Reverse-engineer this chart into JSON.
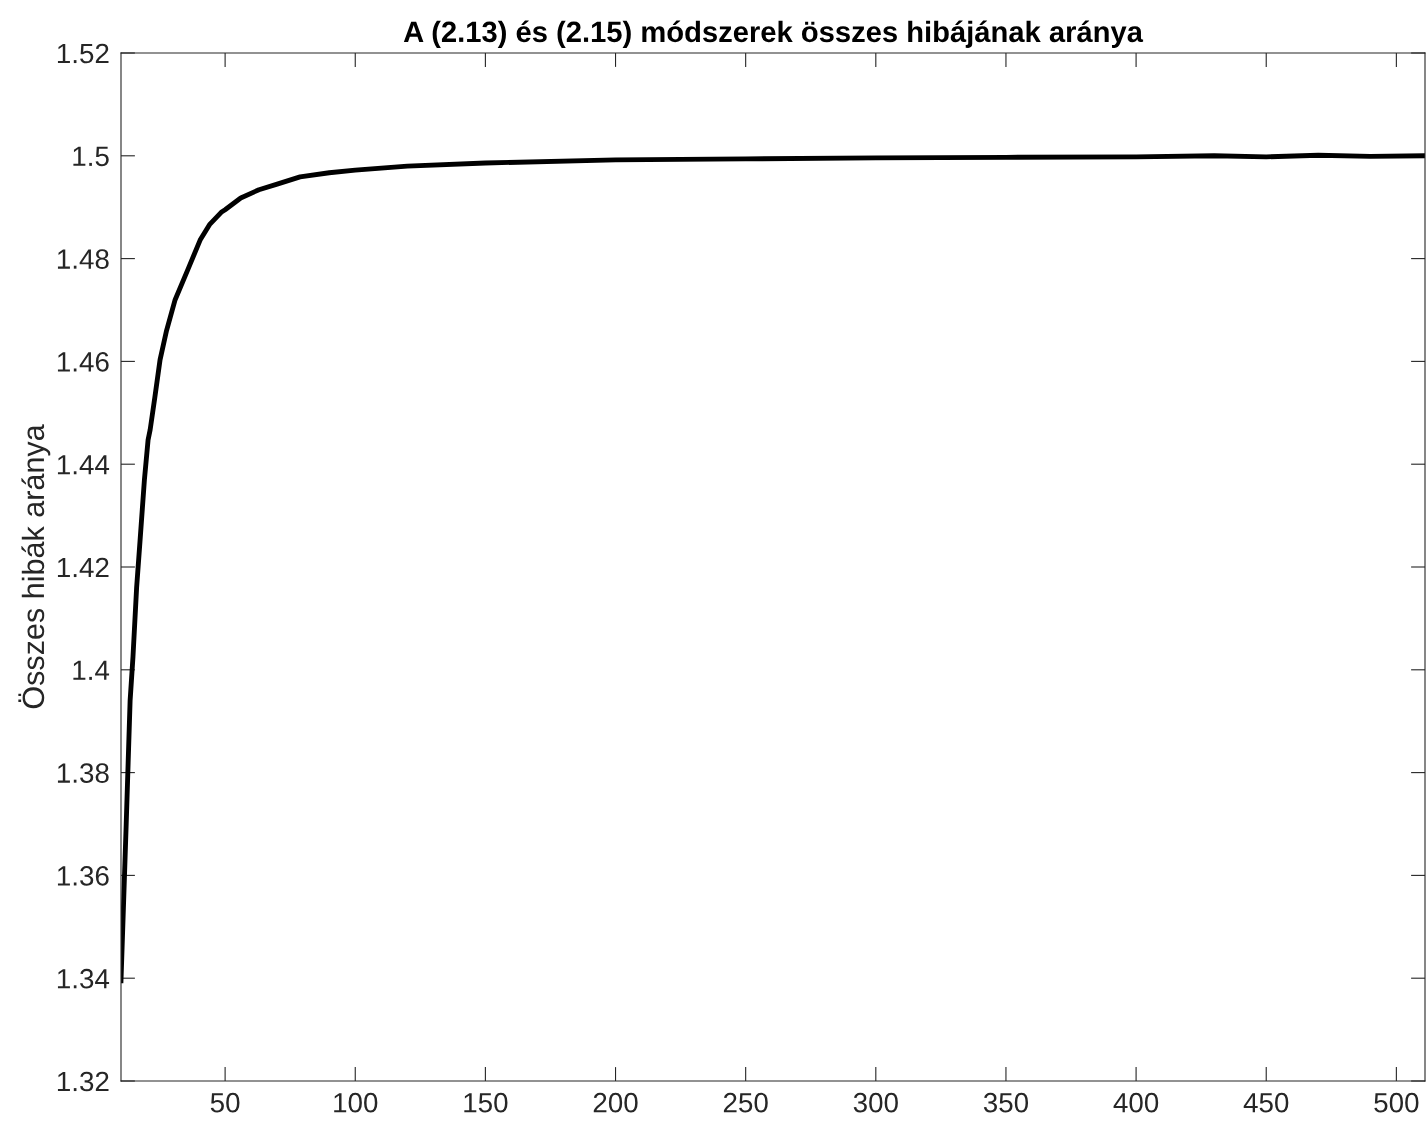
{
  "chart_data": {
    "type": "line",
    "title": "A (2.13) és (2.15) módszerek összes hibájának aránya",
    "ylabel": "Összes hibák aránya",
    "xlim": [
      10,
      511
    ],
    "ylim": [
      1.32,
      1.52
    ],
    "xticks": [
      50,
      100,
      150,
      200,
      250,
      300,
      350,
      400,
      450,
      500
    ],
    "yticks": [
      1.32,
      1.34,
      1.36,
      1.38,
      1.4,
      1.42,
      1.44,
      1.46,
      1.48,
      1.5,
      1.52
    ],
    "grid": false,
    "legend": false,
    "marker": "none",
    "line_style": "solid",
    "series": [
      {
        "color": "#000000",
        "x": [
          10,
          12,
          13.5,
          14.6,
          16,
          17.3,
          19,
          20.4,
          21.2,
          23,
          25,
          27.5,
          30.8,
          35.8,
          40.4,
          44,
          48.5,
          50,
          56,
          63,
          70,
          78.8,
          90,
          100,
          120,
          150,
          200,
          250,
          300,
          350,
          400,
          430,
          450,
          470,
          490,
          511
        ],
        "values": [
          1.3395,
          1.37,
          1.394,
          1.4025,
          1.416,
          1.425,
          1.437,
          1.4447,
          1.4467,
          1.453,
          1.4603,
          1.466,
          1.472,
          1.478,
          1.4836,
          1.4866,
          1.489,
          1.4895,
          1.4918,
          1.4934,
          1.4945,
          1.4959,
          1.4967,
          1.4972,
          1.498,
          1.4986,
          1.4992,
          1.4994,
          1.4996,
          1.4997,
          1.4998,
          1.5,
          1.4998,
          1.5001,
          1.4999,
          1.5
        ]
      }
    ]
  }
}
